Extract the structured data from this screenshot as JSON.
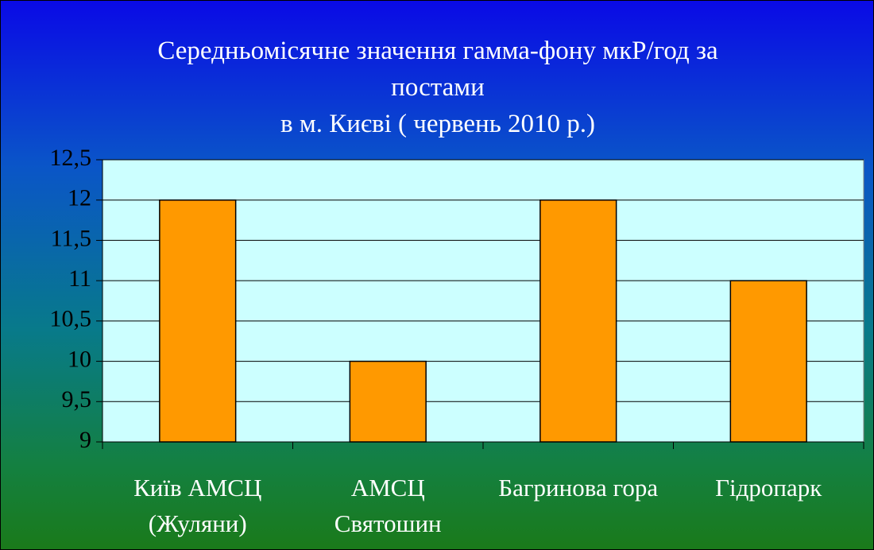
{
  "chart_data": {
    "type": "bar",
    "title": "Середньомісячне значення гамма-фону мкР/год за постами\nв м. Києві ( червень 2010 р.)",
    "categories": [
      "Київ АМСЦ (Жуляни)",
      "АМСЦ Святошин",
      "Багринова гора",
      "Гідропарк"
    ],
    "values": [
      12,
      10,
      12,
      11
    ],
    "color": "#ff9900",
    "ylim": [
      9,
      12.5
    ],
    "yticks": [
      9,
      {
        "value": 9.5,
        "label": "9,5"
      },
      10,
      {
        "value": 10.5,
        "label": "10,5"
      },
      11,
      {
        "value": 11.5,
        "label": "11,5"
      },
      12,
      {
        "value": 12.5,
        "label": "12,5"
      }
    ],
    "grid": true
  }
}
